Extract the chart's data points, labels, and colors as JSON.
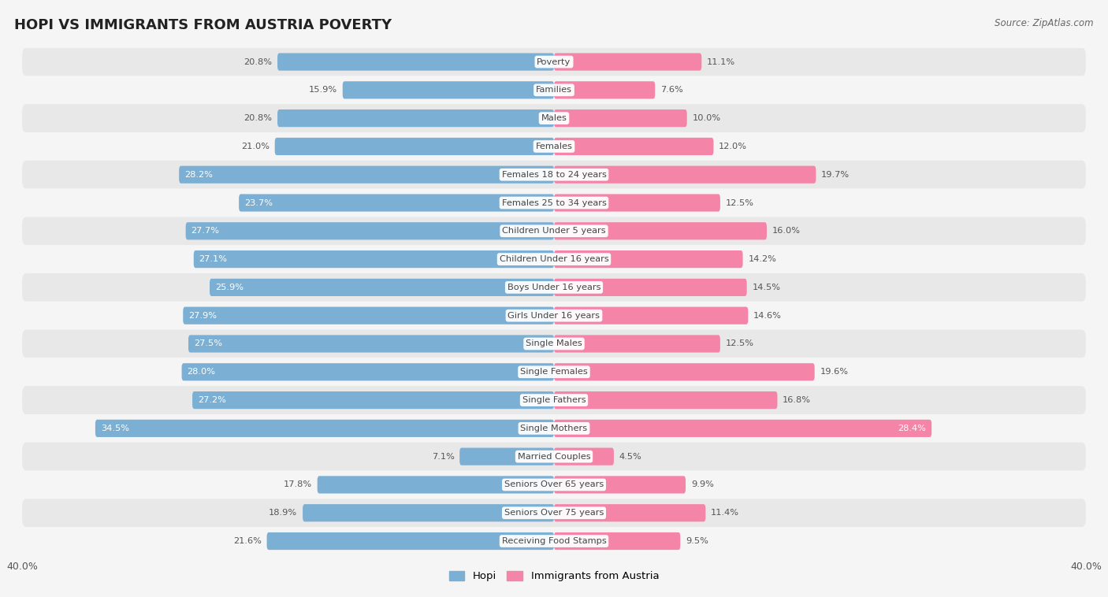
{
  "title": "HOPI VS IMMIGRANTS FROM AUSTRIA POVERTY",
  "source": "Source: ZipAtlas.com",
  "categories": [
    "Poverty",
    "Families",
    "Males",
    "Females",
    "Females 18 to 24 years",
    "Females 25 to 34 years",
    "Children Under 5 years",
    "Children Under 16 years",
    "Boys Under 16 years",
    "Girls Under 16 years",
    "Single Males",
    "Single Females",
    "Single Fathers",
    "Single Mothers",
    "Married Couples",
    "Seniors Over 65 years",
    "Seniors Over 75 years",
    "Receiving Food Stamps"
  ],
  "hopi_values": [
    20.8,
    15.9,
    20.8,
    21.0,
    28.2,
    23.7,
    27.7,
    27.1,
    25.9,
    27.9,
    27.5,
    28.0,
    27.2,
    34.5,
    7.1,
    17.8,
    18.9,
    21.6
  ],
  "austria_values": [
    11.1,
    7.6,
    10.0,
    12.0,
    19.7,
    12.5,
    16.0,
    14.2,
    14.5,
    14.6,
    12.5,
    19.6,
    16.8,
    28.4,
    4.5,
    9.9,
    11.4,
    9.5
  ],
  "hopi_color": "#7BAFD4",
  "austria_color": "#F484A8",
  "hopi_label": "Hopi",
  "austria_label": "Immigrants from Austria",
  "axis_limit": 40.0,
  "background_color": "#f5f5f5",
  "row_color_odd": "#e8e8e8",
  "row_color_even": "#f5f5f5",
  "label_fontsize": 8.5,
  "title_fontsize": 13,
  "bar_height": 0.62,
  "white_label_threshold": 22.0,
  "value_label_fontsize": 8.2,
  "cat_label_fontsize": 8.2
}
